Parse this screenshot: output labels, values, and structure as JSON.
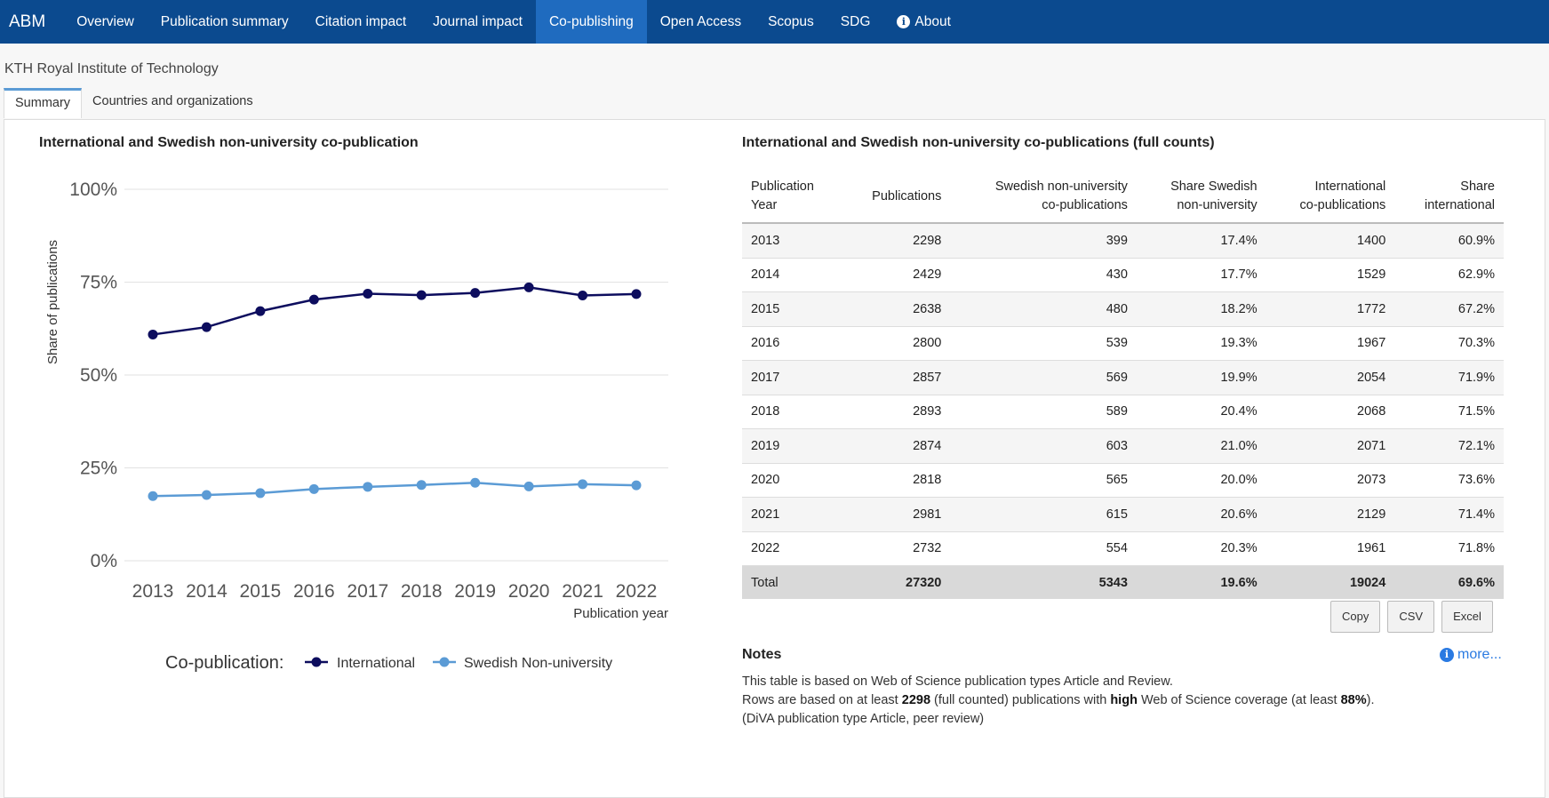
{
  "navbar": {
    "brand": "ABM",
    "links": [
      "Overview",
      "Publication summary",
      "Citation impact",
      "Journal impact",
      "Co-publishing",
      "Open Access",
      "Scopus",
      "SDG",
      "About"
    ],
    "active": "Co-publishing"
  },
  "org_name": "KTH Royal Institute of Technology",
  "tabs": [
    "Summary",
    "Countries and organizations"
  ],
  "chart": {
    "title": "International and Swedish non-university co-publication",
    "legend_label": "Co-publication:"
  },
  "chart_data": {
    "type": "line",
    "title": "International and Swedish non-university co-publication",
    "xlabel": "Publication year",
    "ylabel": "Share of publications",
    "categories": [
      "2013",
      "2014",
      "2015",
      "2016",
      "2017",
      "2018",
      "2019",
      "2020",
      "2021",
      "2022"
    ],
    "series": [
      {
        "name": "International",
        "color": "#0d0d5e",
        "values": [
          60.9,
          62.9,
          67.2,
          70.3,
          71.9,
          71.5,
          72.1,
          73.6,
          71.4,
          71.8
        ]
      },
      {
        "name": "Swedish Non-university",
        "color": "#5b9bd5",
        "values": [
          17.4,
          17.7,
          18.2,
          19.3,
          19.9,
          20.4,
          21.0,
          20.0,
          20.6,
          20.3
        ]
      }
    ],
    "ylim": [
      0,
      100
    ],
    "yticks": [
      "0%",
      "25%",
      "50%",
      "75%",
      "100%"
    ],
    "legend_position": "bottom",
    "grid": true
  },
  "table": {
    "title": "International and Swedish non-university co-publications (full counts)",
    "headers": [
      [
        "Publication",
        "Year"
      ],
      [
        "Publications"
      ],
      [
        "Swedish non-university",
        "co-publications"
      ],
      [
        "Share Swedish",
        "non-university"
      ],
      [
        "International",
        "co-publications"
      ],
      [
        "Share",
        "international"
      ]
    ],
    "rows": [
      [
        "2013",
        "2298",
        "399",
        "17.4%",
        "1400",
        "60.9%"
      ],
      [
        "2014",
        "2429",
        "430",
        "17.7%",
        "1529",
        "62.9%"
      ],
      [
        "2015",
        "2638",
        "480",
        "18.2%",
        "1772",
        "67.2%"
      ],
      [
        "2016",
        "2800",
        "539",
        "19.3%",
        "1967",
        "70.3%"
      ],
      [
        "2017",
        "2857",
        "569",
        "19.9%",
        "2054",
        "71.9%"
      ],
      [
        "2018",
        "2893",
        "589",
        "20.4%",
        "2068",
        "71.5%"
      ],
      [
        "2019",
        "2874",
        "603",
        "21.0%",
        "2071",
        "72.1%"
      ],
      [
        "2020",
        "2818",
        "565",
        "20.0%",
        "2073",
        "73.6%"
      ],
      [
        "2021",
        "2981",
        "615",
        "20.6%",
        "2129",
        "71.4%"
      ],
      [
        "2022",
        "2732",
        "554",
        "20.3%",
        "1961",
        "71.8%"
      ]
    ],
    "total": [
      "Total",
      "27320",
      "5343",
      "19.6%",
      "19024",
      "69.6%"
    ]
  },
  "buttons": {
    "copy": "Copy",
    "csv": "CSV",
    "excel": "Excel"
  },
  "notes": {
    "title": "Notes",
    "more": "more...",
    "line1": "This table is based on Web of Science publication types Article and Review.",
    "line2_a": "Rows are based on at least ",
    "line2_b": "2298",
    "line2_c": " (full counted) publications with ",
    "line2_d": "high",
    "line2_e": " Web of Science coverage (at least ",
    "line2_f": "88%",
    "line2_g": ").",
    "line3": "(DiVA publication type Article, peer review)"
  }
}
